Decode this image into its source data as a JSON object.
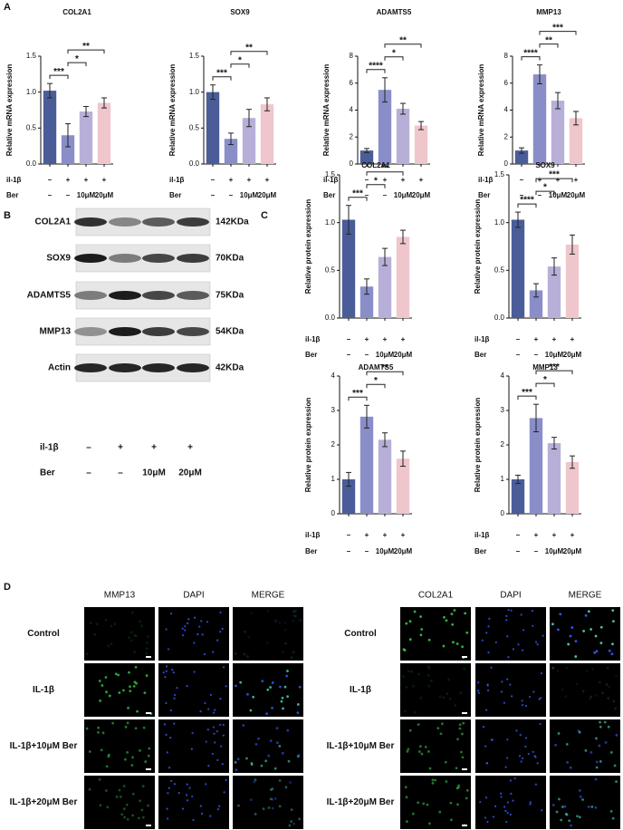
{
  "panels": [
    "A",
    "B",
    "C",
    "D"
  ],
  "chart_data": [
    {
      "type": "bar",
      "title": "COL2A1",
      "y_label": "Relative mRNA expression",
      "categories": [
        null,
        null,
        null,
        null
      ],
      "values": [
        1.02,
        0.4,
        0.73,
        0.85
      ],
      "errors": [
        0.1,
        0.16,
        0.07,
        0.07
      ],
      "colors": [
        "#4a5d99",
        "#8a8ec8",
        "#b8afd8",
        "#efc6cc"
      ],
      "ylim": [
        0,
        1.5
      ],
      "yticks": [
        {
          "value": 0,
          "label": "0.0"
        },
        0.5,
        {
          "value": 1,
          "label": "1.0"
        },
        1.5
      ],
      "annotations": [
        {
          "from": 0,
          "to": 1,
          "text": "***"
        },
        {
          "from": 1,
          "to": 2,
          "text": "*"
        },
        {
          "from": 1,
          "to": 3,
          "text": "**"
        }
      ],
      "treatments": [
        {
          "label": "il-1β",
          "values": [
            "–",
            "+",
            "+",
            "+"
          ]
        },
        {
          "label": "Ber",
          "values": [
            "–",
            "–",
            "10μM",
            "20μM"
          ]
        }
      ]
    },
    {
      "type": "bar",
      "title": "SOX9",
      "y_label": "Relative mRNA expression",
      "categories": [
        null,
        null,
        null,
        null
      ],
      "values": [
        1.0,
        0.35,
        0.64,
        0.83
      ],
      "errors": [
        0.1,
        0.08,
        0.12,
        0.09
      ],
      "colors": [
        "#4a5d99",
        "#8a8ec8",
        "#b8afd8",
        "#efc6cc"
      ],
      "ylim": [
        0,
        1.5
      ],
      "yticks": [
        {
          "value": 0,
          "label": "0.0"
        },
        0.5,
        {
          "value": 1,
          "label": "1.0"
        },
        1.5
      ],
      "annotations": [
        {
          "from": 0,
          "to": 1,
          "text": "***"
        },
        {
          "from": 1,
          "to": 2,
          "text": "*"
        },
        {
          "from": 1,
          "to": 3,
          "text": "**"
        }
      ],
      "treatments": [
        {
          "label": "il-1β",
          "values": [
            "–",
            "+",
            "+",
            "+"
          ]
        },
        {
          "label": "Ber",
          "values": [
            "–",
            "–",
            "10μM",
            "20μM"
          ]
        }
      ]
    },
    {
      "type": "bar",
      "title": "ADAMTS5",
      "y_label": "Relative mRNA expression",
      "categories": [
        null,
        null,
        null,
        null
      ],
      "values": [
        1.0,
        5.5,
        4.1,
        2.85
      ],
      "errors": [
        0.15,
        0.9,
        0.4,
        0.3
      ],
      "colors": [
        "#4a5d99",
        "#8a8ec8",
        "#b8afd8",
        "#efc6cc"
      ],
      "ylim": [
        0,
        8
      ],
      "yticks": [
        0,
        2,
        4,
        6,
        8
      ],
      "annotations": [
        {
          "from": 0,
          "to": 1,
          "text": "****"
        },
        {
          "from": 1,
          "to": 2,
          "text": "*"
        },
        {
          "from": 1,
          "to": 3,
          "text": "**"
        }
      ],
      "treatments": [
        {
          "label": "il-1β",
          "values": [
            "–",
            "+",
            "+",
            "+"
          ]
        },
        {
          "label": "Ber",
          "values": [
            "–",
            "–",
            "10μM",
            "20μM"
          ]
        }
      ]
    },
    {
      "type": "bar",
      "title": "MMP13",
      "y_label": "Relative mRNA expression",
      "categories": [
        null,
        null,
        null,
        null
      ],
      "values": [
        1.0,
        6.65,
        4.7,
        3.4
      ],
      "errors": [
        0.2,
        0.7,
        0.6,
        0.5
      ],
      "colors": [
        "#4a5d99",
        "#8a8ec8",
        "#b8afd8",
        "#efc6cc"
      ],
      "ylim": [
        0,
        8
      ],
      "yticks": [
        0,
        2,
        4,
        6,
        8
      ],
      "annotations": [
        {
          "from": 0,
          "to": 1,
          "text": "****"
        },
        {
          "from": 1,
          "to": 2,
          "text": "**"
        },
        {
          "from": 1,
          "to": 3,
          "text": "***"
        }
      ],
      "treatments": [
        {
          "label": "il-1β",
          "values": [
            "–",
            "+",
            "+",
            "+"
          ]
        },
        {
          "label": "Ber",
          "values": [
            "–",
            "–",
            "10μM",
            "20μM"
          ]
        }
      ]
    },
    {
      "type": "bar",
      "title": "COL2A1",
      "y_label": "Relative protein expression",
      "categories": [
        null,
        null,
        null,
        null
      ],
      "values": [
        1.03,
        0.33,
        0.64,
        0.85
      ],
      "errors": [
        0.15,
        0.08,
        0.09,
        0.07
      ],
      "colors": [
        "#4a5d99",
        "#8a8ec8",
        "#b8afd8",
        "#efc6cc"
      ],
      "ylim": [
        0,
        1.5
      ],
      "yticks": [
        {
          "value": 0,
          "label": "0.0"
        },
        0.5,
        {
          "value": 1,
          "label": "1.0"
        },
        1.5
      ],
      "annotations": [
        {
          "from": 0,
          "to": 1,
          "text": "***"
        },
        {
          "from": 1,
          "to": 2,
          "text": "*"
        },
        {
          "from": 1,
          "to": 3,
          "text": "**"
        }
      ],
      "treatments": [
        {
          "label": "il-1β",
          "values": [
            "–",
            "+",
            "+",
            "+"
          ]
        },
        {
          "label": "Ber",
          "values": [
            "–",
            "–",
            "10μM",
            "20μM"
          ]
        }
      ]
    },
    {
      "type": "bar",
      "title": "SOX9",
      "y_label": "Relative protein expression",
      "categories": [
        null,
        null,
        null,
        null
      ],
      "values": [
        1.03,
        0.29,
        0.54,
        0.77
      ],
      "errors": [
        0.08,
        0.07,
        0.09,
        0.1
      ],
      "colors": [
        "#4a5d99",
        "#8a8ec8",
        "#b8afd8",
        "#efc6cc"
      ],
      "ylim": [
        0,
        1.5
      ],
      "yticks": [
        {
          "value": 0,
          "label": "0.0"
        },
        0.5,
        {
          "value": 1,
          "label": "1.0"
        },
        1.5
      ],
      "annotations": [
        {
          "from": 0,
          "to": 1,
          "text": "****"
        },
        {
          "from": 1,
          "to": 2,
          "text": "*"
        },
        {
          "from": 1,
          "to": 3,
          "text": "***"
        }
      ],
      "treatments": [
        {
          "label": "il-1β",
          "values": [
            "–",
            "+",
            "+",
            "+"
          ]
        },
        {
          "label": "Ber",
          "values": [
            "–",
            "–",
            "10μM",
            "20μM"
          ]
        }
      ]
    },
    {
      "type": "bar",
      "title": "ADAMTS5",
      "y_label": "Relative protein expression",
      "categories": [
        null,
        null,
        null,
        null
      ],
      "values": [
        1.0,
        2.82,
        2.15,
        1.6
      ],
      "errors": [
        0.2,
        0.33,
        0.2,
        0.22
      ],
      "colors": [
        "#4a5d99",
        "#8a8ec8",
        "#b8afd8",
        "#efc6cc"
      ],
      "ylim": [
        0,
        4
      ],
      "yticks": [
        0,
        1,
        2,
        3,
        4
      ],
      "annotations": [
        {
          "from": 0,
          "to": 1,
          "text": "***"
        },
        {
          "from": 1,
          "to": 2,
          "text": "*"
        },
        {
          "from": 1,
          "to": 3,
          "text": "**"
        }
      ],
      "treatments": [
        {
          "label": "il-1β",
          "values": [
            "–",
            "+",
            "+",
            "+"
          ]
        },
        {
          "label": "Ber",
          "values": [
            "–",
            "–",
            "10μM",
            "20μM"
          ]
        }
      ]
    },
    {
      "type": "bar",
      "title": "MMP13",
      "y_label": "Relative protein expression",
      "categories": [
        null,
        null,
        null,
        null
      ],
      "values": [
        1.0,
        2.78,
        2.05,
        1.5
      ],
      "errors": [
        0.12,
        0.4,
        0.17,
        0.18
      ],
      "colors": [
        "#4a5d99",
        "#8a8ec8",
        "#b8afd8",
        "#efc6cc"
      ],
      "ylim": [
        0,
        4
      ],
      "yticks": [
        0,
        1,
        2,
        3,
        4
      ],
      "annotations": [
        {
          "from": 0,
          "to": 1,
          "text": "***"
        },
        {
          "from": 1,
          "to": 2,
          "text": "*"
        },
        {
          "from": 1,
          "to": 3,
          "text": "***"
        }
      ],
      "treatments": [
        {
          "label": "il-1β",
          "values": [
            "–",
            "+",
            "+",
            "+"
          ]
        },
        {
          "label": "Ber",
          "values": [
            "–",
            "–",
            "10μM",
            "20μM"
          ]
        }
      ]
    }
  ],
  "western_blot": {
    "bands": [
      {
        "name": "COL2A1",
        "size": "142KDa"
      },
      {
        "name": "SOX9",
        "size": "70KDa"
      },
      {
        "name": "ADAMTS5",
        "size": "75KDa"
      },
      {
        "name": "MMP13",
        "size": "54KDa"
      },
      {
        "name": "Actin",
        "size": "42KDa"
      }
    ],
    "treatments": [
      {
        "label": "il-1β",
        "values": [
          "–",
          "+",
          "+",
          "+"
        ]
      },
      {
        "label": "Ber",
        "values": [
          "–",
          "–",
          "10μM",
          "20μM"
        ]
      }
    ]
  },
  "immunofluorescence": [
    {
      "columns": [
        "MMP13",
        "DAPI",
        "MERGE"
      ],
      "rows": [
        "Control",
        "IL-1β",
        "IL-1β+10μM Ber",
        "IL-1β+20μM Ber"
      ]
    },
    {
      "columns": [
        "COL2A1",
        "DAPI",
        "MERGE"
      ],
      "rows": [
        "Control",
        "IL-1β",
        "IL-1β+10μM Ber",
        "IL-1β+20μM Ber"
      ]
    }
  ]
}
